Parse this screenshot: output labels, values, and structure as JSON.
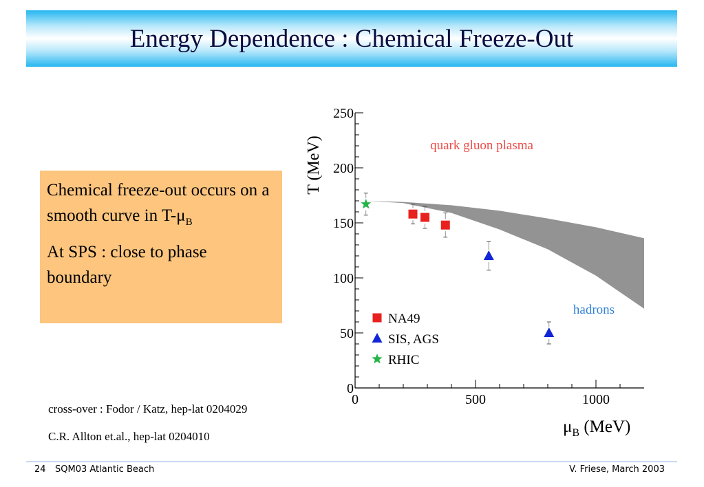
{
  "slide": {
    "title": "Energy Dependence : Chemical Freeze-Out",
    "bullets": {
      "b1_pre": "Chemical freeze-out occurs on a smooth curve in T-μ",
      "b1_sub": "B",
      "b2": "At SPS : close to phase boundary"
    },
    "refs": {
      "r1": "cross-over : Fodor / Katz, hep-lat 0204029",
      "r2": "C.R. Allton et.al., hep-lat 0204010"
    },
    "footer": {
      "page": "24",
      "event": "SQM03 Atlantic Beach",
      "author": "V. Friese, March 2003"
    }
  },
  "chart_data": {
    "type": "scatter",
    "xlabel_main": "μ",
    "xlabel_sub": "B",
    "xlabel_unit": " (MeV)",
    "ylabel": "T (MeV)",
    "xlim": [
      0,
      1200
    ],
    "ylim": [
      0,
      250
    ],
    "xticks": [
      0,
      500,
      1000
    ],
    "yticks": [
      0,
      50,
      100,
      150,
      200,
      250
    ],
    "grid": false,
    "legend_position": "bottom-left",
    "region_labels": {
      "qgp": "quark gluon plasma",
      "hadrons": "hadrons"
    },
    "phase_boundary_band": {
      "x": [
        50,
        200,
        400,
        600,
        800,
        1000,
        1200
      ],
      "upper": [
        170,
        169,
        166,
        161,
        154,
        146,
        136
      ],
      "lower": [
        170,
        168,
        159,
        144,
        126,
        102,
        72
      ]
    },
    "series": [
      {
        "name": "NA49",
        "marker": "square",
        "color": "#e8211e",
        "points": [
          {
            "x": 240,
            "y": 158,
            "yerr": 9
          },
          {
            "x": 290,
            "y": 155,
            "yerr": 10
          },
          {
            "x": 375,
            "y": 148,
            "yerr": 11
          }
        ]
      },
      {
        "name": "SIS, AGS",
        "marker": "triangle",
        "color": "#1226d6",
        "points": [
          {
            "x": 555,
            "y": 120,
            "yerr": 13
          },
          {
            "x": 805,
            "y": 50,
            "yerr": 10
          }
        ]
      },
      {
        "name": "RHIC",
        "marker": "star",
        "color": "#24b548",
        "points": [
          {
            "x": 45,
            "y": 167,
            "yerr": 10
          }
        ]
      }
    ]
  }
}
